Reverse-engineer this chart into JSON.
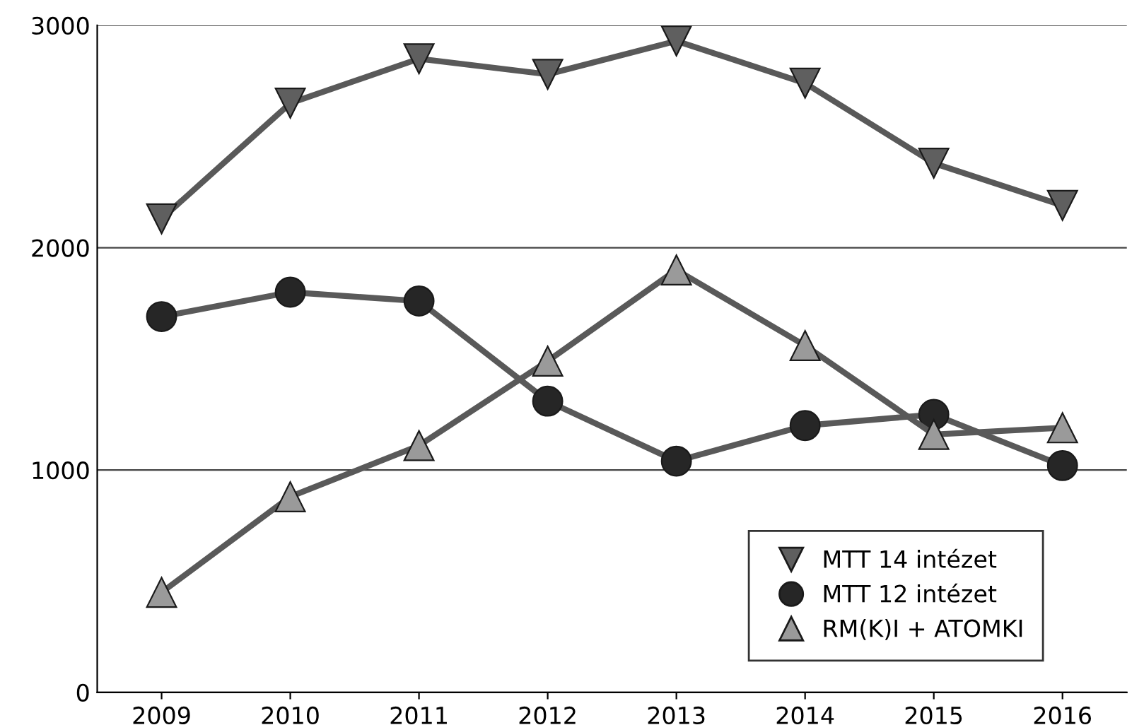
{
  "chart_data": {
    "type": "line",
    "categories": [
      "2009",
      "2010",
      "2011",
      "2012",
      "2013",
      "2014",
      "2015",
      "2016"
    ],
    "series": [
      {
        "name": "MTT 14 intézet",
        "color": "#5f5f5f",
        "marker": "triangle_down",
        "values": [
          2130,
          2650,
          2850,
          2780,
          2930,
          2740,
          2380,
          2190
        ]
      },
      {
        "name": "MTT 12 intézet",
        "color": "#262626",
        "marker": "circle",
        "values": [
          1690,
          1800,
          1760,
          1310,
          1040,
          1200,
          1250,
          1020
        ]
      },
      {
        "name": "RM(K)I + ATOMKI",
        "color": "#9a9a9a",
        "marker": "triangle",
        "values": [
          450,
          880,
          1110,
          1490,
          1900,
          1560,
          1160,
          1190
        ]
      }
    ],
    "ylim": [
      0,
      3000
    ],
    "yticks": [
      0,
      1000,
      2000,
      3000
    ],
    "grid": "y",
    "legend": "bottom right",
    "line_style": "solid"
  }
}
